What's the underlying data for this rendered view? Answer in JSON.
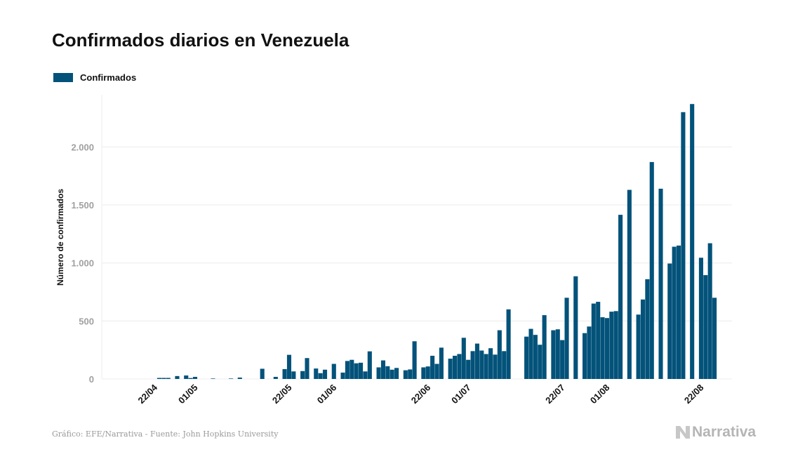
{
  "title": "Confirmados diarios en Venezuela",
  "legend": {
    "label": "Confirmados",
    "color": "#03527a"
  },
  "footer": {
    "source": "Gráfico: EFE/Narrativa - Fuente: John Hopkins University",
    "brand": "Narrativa"
  },
  "chart_data": {
    "type": "bar",
    "title": "Confirmados diarios en Venezuela",
    "ylabel": "Número de confirmados",
    "xlabel": "",
    "ylim": [
      0,
      2450
    ],
    "yticks": [
      0,
      500,
      1000,
      1500,
      2000
    ],
    "ytick_labels": [
      "0",
      "500",
      "1.000",
      "1.500",
      "2.000"
    ],
    "grid": true,
    "legend_position": "top-left",
    "x_tick_labels": [
      {
        "label": "22/04",
        "index": 0
      },
      {
        "label": "01/05",
        "index": 9
      },
      {
        "label": "22/05",
        "index": 30
      },
      {
        "label": "01/06",
        "index": 40
      },
      {
        "label": "22/06",
        "index": 61
      },
      {
        "label": "01/07",
        "index": 70
      },
      {
        "label": "22/07",
        "index": 91
      },
      {
        "label": "01/08",
        "index": 101
      },
      {
        "label": "22/08",
        "index": 122
      }
    ],
    "series": [
      {
        "name": "Confirmados",
        "color": "#03527a",
        "values": [
          0,
          0,
          0,
          0,
          0,
          9,
          9,
          9,
          0,
          25,
          0,
          30,
          8,
          18,
          0,
          0,
          0,
          4,
          0,
          0,
          0,
          4,
          0,
          12,
          0,
          0,
          0,
          0,
          88,
          0,
          0,
          18,
          0,
          85,
          208,
          65,
          0,
          68,
          180,
          0,
          90,
          50,
          80,
          0,
          130,
          0,
          55,
          155,
          165,
          135,
          140,
          65,
          238,
          0,
          100,
          160,
          110,
          80,
          95,
          0,
          75,
          82,
          325,
          0,
          100,
          108,
          200,
          130,
          270,
          0,
          175,
          200,
          215,
          355,
          165,
          240,
          305,
          245,
          215,
          265,
          210,
          420,
          240,
          600,
          0,
          0,
          0,
          365,
          432,
          380,
          295,
          550,
          0,
          420,
          428,
          335,
          700,
          0,
          885,
          0,
          395,
          452,
          650,
          665,
          532,
          525,
          580,
          585,
          1415,
          0,
          1630,
          0,
          555,
          685,
          860,
          1870,
          0,
          1640,
          0,
          995,
          1140,
          1150,
          2300,
          0,
          2370,
          0,
          1045,
          895,
          1170,
          700
        ]
      }
    ]
  }
}
